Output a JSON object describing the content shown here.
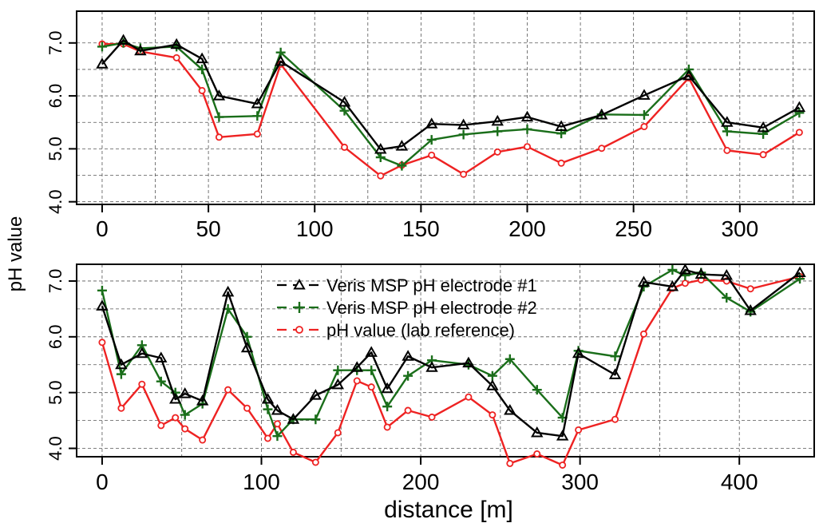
{
  "chart_data": [
    {
      "type": "line",
      "panel": "top",
      "xlabel": "",
      "ylabel": "pH value",
      "xlim": [
        -12,
        335
      ],
      "ylim": [
        3.95,
        7.6
      ],
      "xticks": [
        0,
        50,
        100,
        150,
        200,
        250,
        300
      ],
      "yticks": [
        4.0,
        5.0,
        6.0,
        7.0
      ],
      "ytick_labels": [
        "4.0",
        "5.0",
        "6.0",
        "7.0"
      ],
      "grid": true,
      "series": [
        {
          "name": "Veris MSP pH electrode #1",
          "color": "#000000",
          "marker": "triangle",
          "x": [
            0,
            10,
            18,
            35,
            47,
            55,
            73,
            84,
            114,
            131,
            141,
            155,
            170,
            186,
            200,
            216,
            235,
            255,
            276,
            294,
            311,
            328
          ],
          "y": [
            6.6,
            7.05,
            6.85,
            6.97,
            6.7,
            6.0,
            5.85,
            6.65,
            5.88,
            4.99,
            5.05,
            5.47,
            5.45,
            5.52,
            5.6,
            5.42,
            5.64,
            6.01,
            6.38,
            5.5,
            5.4,
            5.78
          ]
        },
        {
          "name": "Veris MSP pH electrode #2",
          "color": "#1a6e1a",
          "marker": "plus",
          "x": [
            0,
            10,
            18,
            35,
            47,
            55,
            73,
            84,
            114,
            131,
            141,
            155,
            170,
            186,
            200,
            216,
            235,
            255,
            276,
            294,
            311,
            328
          ],
          "y": [
            6.93,
            7.0,
            6.9,
            6.93,
            6.5,
            5.6,
            5.62,
            6.82,
            5.72,
            4.84,
            4.68,
            5.17,
            5.27,
            5.33,
            5.37,
            5.29,
            5.65,
            5.64,
            6.5,
            5.33,
            5.28,
            5.68
          ]
        },
        {
          "name": "pH value (lab reference)",
          "color": "#ee2222",
          "marker": "circle",
          "x": [
            0,
            10,
            18,
            35,
            47,
            55,
            73,
            84,
            114,
            131,
            141,
            155,
            170,
            186,
            200,
            216,
            235,
            255,
            276,
            294,
            311,
            328
          ],
          "y": [
            6.98,
            6.98,
            6.84,
            6.72,
            6.1,
            5.22,
            5.28,
            6.6,
            5.03,
            4.49,
            4.69,
            4.88,
            4.52,
            4.94,
            5.04,
            4.73,
            5.01,
            5.42,
            6.34,
            4.97,
            4.89,
            5.31
          ]
        }
      ]
    },
    {
      "type": "line",
      "panel": "bottom",
      "xlabel": "distance [m]",
      "ylabel": "pH value",
      "xlim": [
        -16,
        447
      ],
      "ylim": [
        3.85,
        7.3
      ],
      "xticks": [
        0,
        100,
        200,
        300,
        400
      ],
      "yticks": [
        4.0,
        5.0,
        6.0,
        7.0
      ],
      "ytick_labels": [
        "4.0",
        "5.0",
        "6.0",
        "7.0"
      ],
      "grid": true,
      "legend": {
        "position": "top-center",
        "entries": [
          "Veris MSP pH electrode #1",
          "Veris MSP pH electrode #2",
          "pH value (lab reference)"
        ]
      },
      "series": [
        {
          "name": "Veris MSP pH electrode #1",
          "color": "#000000",
          "marker": "triangle",
          "x": [
            0,
            12,
            25,
            37,
            46,
            52,
            63,
            79,
            91,
            104,
            110,
            120,
            134,
            148,
            160,
            169,
            179,
            192,
            207,
            230,
            245,
            256,
            273,
            289,
            299,
            322,
            340,
            358,
            366,
            376,
            392,
            407,
            438
          ],
          "y": [
            6.55,
            5.5,
            5.7,
            5.62,
            4.88,
            4.98,
            4.85,
            6.8,
            5.8,
            4.88,
            4.68,
            4.52,
            4.95,
            5.14,
            5.45,
            5.72,
            5.07,
            5.65,
            5.45,
            5.53,
            5.12,
            4.68,
            4.28,
            4.22,
            5.7,
            5.32,
            6.98,
            6.9,
            7.2,
            7.12,
            7.1,
            6.47,
            7.15
          ]
        },
        {
          "name": "Veris MSP pH electrode #2",
          "color": "#1a6e1a",
          "marker": "plus",
          "x": [
            0,
            12,
            25,
            37,
            46,
            52,
            63,
            79,
            91,
            104,
            110,
            120,
            134,
            148,
            160,
            169,
            179,
            192,
            207,
            230,
            245,
            256,
            273,
            289,
            299,
            322,
            340,
            358,
            366,
            376,
            392,
            407,
            438
          ],
          "y": [
            6.83,
            5.33,
            5.85,
            5.2,
            5.0,
            4.6,
            4.8,
            6.5,
            6.0,
            4.7,
            4.22,
            4.52,
            4.52,
            5.4,
            5.4,
            5.4,
            4.75,
            5.3,
            5.58,
            5.5,
            5.3,
            5.6,
            5.05,
            4.55,
            5.75,
            5.65,
            6.9,
            7.2,
            7.1,
            7.15,
            6.7,
            6.45,
            7.04
          ]
        },
        {
          "name": "pH value (lab reference)",
          "color": "#ee2222",
          "marker": "circle",
          "x": [
            0,
            12,
            25,
            37,
            46,
            52,
            63,
            79,
            91,
            104,
            110,
            120,
            134,
            148,
            160,
            169,
            179,
            192,
            207,
            230,
            245,
            256,
            273,
            289,
            299,
            322,
            340,
            358,
            366,
            376,
            392,
            407,
            438
          ],
          "y": [
            5.9,
            4.72,
            5.15,
            4.41,
            4.55,
            4.35,
            4.15,
            5.05,
            4.72,
            4.18,
            4.44,
            3.93,
            3.75,
            4.28,
            5.21,
            5.1,
            4.38,
            4.68,
            4.56,
            4.92,
            4.6,
            3.73,
            3.9,
            3.7,
            4.33,
            4.52,
            6.05,
            6.87,
            6.96,
            7.02,
            7.0,
            6.86,
            7.08
          ]
        }
      ]
    }
  ]
}
